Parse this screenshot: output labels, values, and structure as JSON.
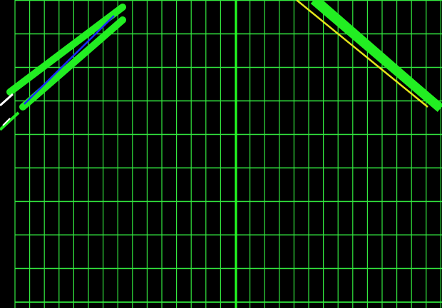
{
  "scene": {
    "background_color": "#000000",
    "grid_color": "#33e83f",
    "axis_color": "#22ff22",
    "trace_primary_color": "#22ee22",
    "trace_secondary_color": "#1a2bff",
    "trace_tertiary_color": "#e6e61a",
    "trace_highlight_color": "#ffffff"
  }
}
